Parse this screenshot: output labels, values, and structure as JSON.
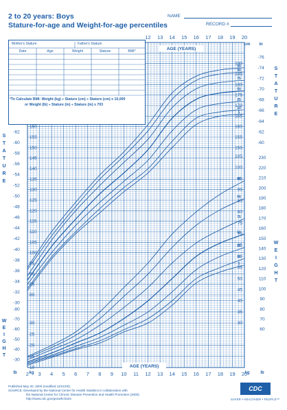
{
  "header": {
    "title_line1": "2 to 20 years: Boys",
    "title_line2": "Stature-for-age and Weight-for-age percentiles",
    "name_label": "NAME",
    "record_label": "RECORD #"
  },
  "record_table": {
    "mothers_stature": "Mother's Stature",
    "fathers_stature": "Father's Stature",
    "columns": [
      "Date",
      "Age",
      "Weight",
      "Stature",
      "BMI*"
    ],
    "bmi_note_line1": "*To Calculate BMI: Weight (kg) ÷ Stature (cm) ÷ Stature (cm) x 10,000",
    "bmi_note_line2": "or Weight (lb) ÷ Stature (in) ÷ Stature (in) x 703"
  },
  "footer": {
    "line1": "Published May 30, 2000 (modified 11/21/00).",
    "line2": "SOURCE: Developed by the National Center for Health Statistics in collaboration with",
    "line3": "the National Center for Chronic Disease Prevention and Health Promotion (2000).",
    "line4": "http://www.cdc.gov/growthcharts",
    "logo_text": "CDC",
    "tagline": "SAFER • HEALTHIER • PEOPLE™"
  },
  "colors": {
    "line": "#1f5fa8",
    "grid": "#2a6db5"
  },
  "chart_data": {
    "type": "line",
    "xlabel": "AGE (YEARS)",
    "x_ticks": [
      2,
      3,
      4,
      5,
      6,
      7,
      8,
      9,
      10,
      11,
      12,
      13,
      14,
      15,
      16,
      17,
      18,
      19,
      20
    ],
    "xlim": [
      2,
      20
    ],
    "axis_labels": {
      "age_top": "AGE (YEARS)",
      "age_bottom": "AGE (YEARS)",
      "stature_left": "S T A T U R E",
      "stature_right": "S T A T U R E",
      "weight_left": "W E I G H T",
      "weight_right": "W E I G H T",
      "cm": "cm",
      "in": "in",
      "kg": "kg",
      "lb": "lb"
    },
    "stature": {
      "ylim_cm": [
        80,
        200
      ],
      "cm_ticks_left": [
        80,
        85,
        90,
        95,
        100,
        105,
        110,
        115,
        120,
        125,
        130,
        135,
        140,
        145,
        150,
        155,
        160
      ],
      "cm_ticks_right": [
        150,
        155,
        160,
        165,
        170,
        175,
        180,
        185,
        190
      ],
      "in_ticks_left": [
        30,
        32,
        34,
        36,
        38,
        40,
        42,
        44,
        46,
        48,
        50,
        52,
        54,
        56,
        58,
        60,
        62
      ],
      "in_ticks_right": [
        60,
        62,
        64,
        66,
        68,
        70,
        72,
        74,
        76
      ],
      "series": [
        {
          "name": "95",
          "ages": [
            2,
            4,
            6,
            8,
            10,
            12,
            14,
            16,
            18,
            20
          ],
          "values": [
            93,
            110,
            124,
            137,
            148,
            161,
            176,
            184,
            187,
            188
          ]
        },
        {
          "name": "90",
          "ages": [
            2,
            4,
            6,
            8,
            10,
            12,
            14,
            16,
            18,
            20
          ],
          "values": [
            92,
            108,
            122,
            135,
            146,
            158,
            173,
            182,
            185,
            186
          ]
        },
        {
          "name": "75",
          "ages": [
            2,
            4,
            6,
            8,
            10,
            12,
            14,
            16,
            18,
            20
          ],
          "values": [
            89,
            106,
            120,
            132,
            143,
            154,
            169,
            178,
            181,
            182
          ]
        },
        {
          "name": "50",
          "ages": [
            2,
            4,
            6,
            8,
            10,
            12,
            14,
            16,
            18,
            20
          ],
          "values": [
            87,
            103,
            116,
            128,
            138,
            149,
            164,
            173,
            176,
            177
          ]
        },
        {
          "name": "25",
          "ages": [
            2,
            4,
            6,
            8,
            10,
            12,
            14,
            16,
            18,
            20
          ],
          "values": [
            85,
            100,
            113,
            124,
            134,
            144,
            158,
            168,
            171,
            172
          ]
        },
        {
          "name": "10",
          "ages": [
            2,
            4,
            6,
            8,
            10,
            12,
            14,
            16,
            18,
            20
          ],
          "values": [
            83,
            98,
            110,
            121,
            131,
            140,
            153,
            164,
            167,
            168
          ]
        },
        {
          "name": "5",
          "ages": [
            2,
            4,
            6,
            8,
            10,
            12,
            14,
            16,
            18,
            20
          ],
          "values": [
            82,
            97,
            109,
            119,
            129,
            138,
            150,
            161,
            165,
            166
          ]
        }
      ]
    },
    "weight": {
      "ylim_kg": [
        10,
        105
      ],
      "kg_ticks_left": [
        10,
        15,
        20,
        25,
        30
      ],
      "kg_ticks_right": [
        30,
        35,
        40,
        45,
        50,
        55,
        60,
        65,
        70,
        75,
        80,
        85,
        90,
        95,
        100,
        105
      ],
      "lb_ticks_left": [
        30,
        40,
        50,
        60,
        70,
        80
      ],
      "lb_ticks_right": [
        60,
        70,
        80,
        90,
        100,
        110,
        120,
        130,
        140,
        150,
        160,
        170,
        180,
        190,
        200,
        210,
        220,
        230
      ],
      "series": [
        {
          "name": "95",
          "ages": [
            2,
            4,
            6,
            8,
            10,
            12,
            14,
            16,
            18,
            20
          ],
          "values": [
            15,
            20,
            26,
            35,
            46,
            57,
            70,
            80,
            88,
            94
          ]
        },
        {
          "name": "90",
          "ages": [
            2,
            4,
            6,
            8,
            10,
            12,
            14,
            16,
            18,
            20
          ],
          "values": [
            14.5,
            19,
            24.5,
            32,
            42,
            52,
            64,
            74,
            81,
            86
          ]
        },
        {
          "name": "75",
          "ages": [
            2,
            4,
            6,
            8,
            10,
            12,
            14,
            16,
            18,
            20
          ],
          "values": [
            13.5,
            18,
            22.5,
            29,
            37,
            46,
            57,
            66,
            72,
            77
          ]
        },
        {
          "name": "50",
          "ages": [
            2,
            4,
            6,
            8,
            10,
            12,
            14,
            16,
            18,
            20
          ],
          "values": [
            12.5,
            16.5,
            21,
            25.5,
            32,
            40,
            50,
            60,
            66,
            70
          ]
        },
        {
          "name": "25",
          "ages": [
            2,
            4,
            6,
            8,
            10,
            12,
            14,
            16,
            18,
            20
          ],
          "values": [
            12,
            15.5,
            19.5,
            23.5,
            29,
            35,
            44,
            54,
            60,
            64
          ]
        },
        {
          "name": "10",
          "ages": [
            2,
            4,
            6,
            8,
            10,
            12,
            14,
            16,
            18,
            20
          ],
          "values": [
            11.5,
            15,
            18.5,
            22,
            27,
            32,
            40,
            50,
            55,
            59
          ]
        },
        {
          "name": "5",
          "ages": [
            2,
            4,
            6,
            8,
            10,
            12,
            14,
            16,
            18,
            20
          ],
          "values": [
            11,
            14.5,
            18,
            21,
            26,
            30,
            38,
            48,
            53,
            56
          ]
        }
      ]
    }
  }
}
